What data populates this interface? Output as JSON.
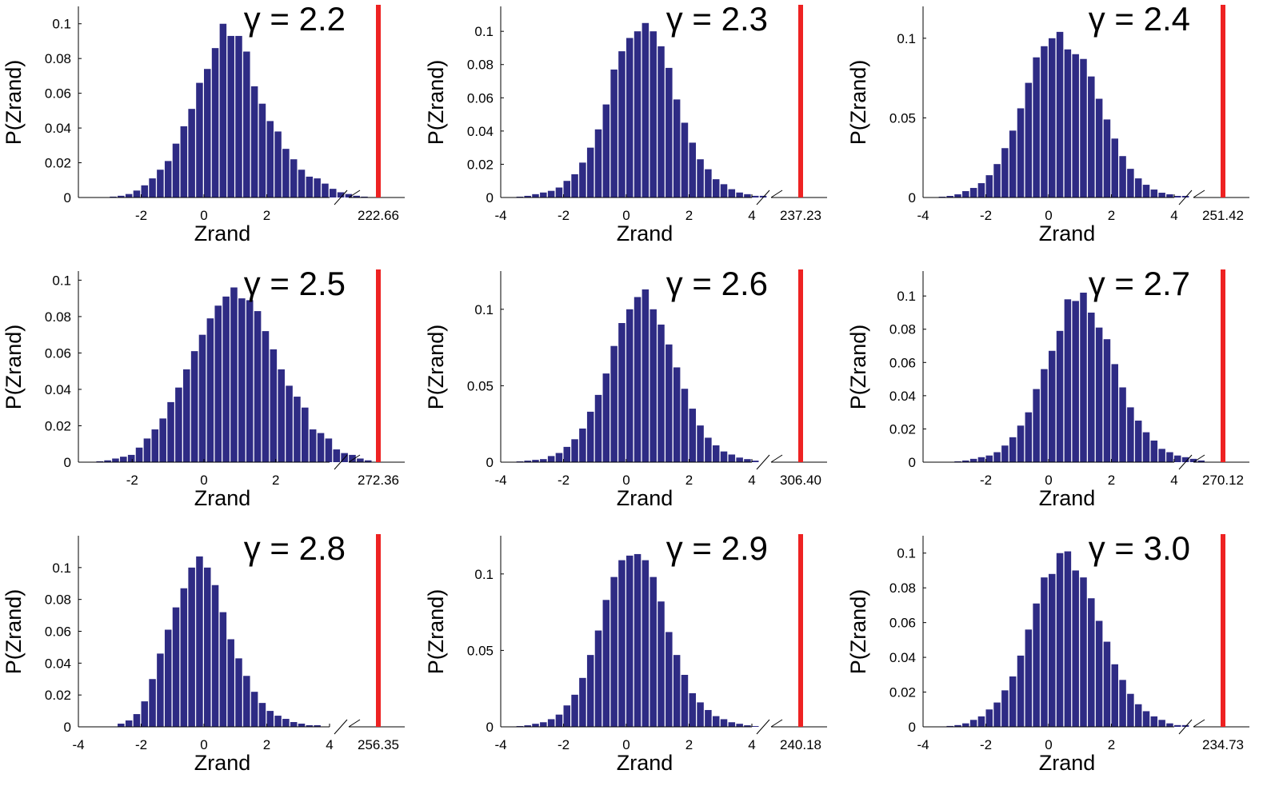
{
  "colors": {
    "bar": "#2e2b84",
    "observed": "#ee2222",
    "axis": "#000000"
  },
  "chart_data": [
    {
      "type": "bar",
      "title": "γ = 2.2",
      "xlabel": "Zrand",
      "ylabel": "P(Zrand)",
      "xlim": [
        -4,
        4
      ],
      "ylim": [
        0,
        0.11
      ],
      "xticks": [
        "-2",
        "0",
        "2"
      ],
      "yticks": [
        "0",
        "0.02",
        "0.04",
        "0.06",
        "0.08",
        "0.1"
      ],
      "bin_start": -3.0,
      "bin_width": 0.25,
      "values": [
        0.0005,
        0.001,
        0.002,
        0.004,
        0.007,
        0.011,
        0.016,
        0.021,
        0.031,
        0.041,
        0.051,
        0.066,
        0.074,
        0.086,
        0.1,
        0.093,
        0.093,
        0.084,
        0.064,
        0.054,
        0.044,
        0.038,
        0.028,
        0.022,
        0.016,
        0.012,
        0.011,
        0.008,
        0.005,
        0.003,
        0.002,
        0.001,
        0.0005
      ],
      "observed_label": "222.66"
    },
    {
      "type": "bar",
      "title": "γ = 2.3",
      "xlabel": "Zrand",
      "ylabel": "P(Zrand)",
      "xlim": [
        -4,
        4
      ],
      "ylim": [
        0,
        0.115
      ],
      "xticks": [
        "-4",
        "-2",
        "0",
        "2",
        "4"
      ],
      "yticks": [
        "0",
        "0.02",
        "0.04",
        "0.06",
        "0.08",
        "0.1"
      ],
      "bin_start": -3.5,
      "bin_width": 0.25,
      "values": [
        0.0005,
        0.001,
        0.002,
        0.003,
        0.004,
        0.006,
        0.01,
        0.014,
        0.021,
        0.03,
        0.041,
        0.056,
        0.077,
        0.088,
        0.096,
        0.1,
        0.105,
        0.1,
        0.091,
        0.078,
        0.059,
        0.045,
        0.033,
        0.023,
        0.017,
        0.011,
        0.008,
        0.005,
        0.003,
        0.002,
        0.001,
        0.001
      ],
      "observed_label": "237.23"
    },
    {
      "type": "bar",
      "title": "γ = 2.4",
      "xlabel": "Zrand",
      "ylabel": "P(Zrand)",
      "xlim": [
        -4,
        4
      ],
      "ylim": [
        0,
        0.12
      ],
      "xticks": [
        "-4",
        "-2",
        "0",
        "2",
        "4"
      ],
      "yticks": [
        "0",
        "0.05",
        "0.1"
      ],
      "bin_start": -3.5,
      "bin_width": 0.25,
      "values": [
        0.0005,
        0.001,
        0.002,
        0.004,
        0.006,
        0.009,
        0.014,
        0.021,
        0.031,
        0.042,
        0.056,
        0.072,
        0.088,
        0.095,
        0.1,
        0.104,
        0.093,
        0.09,
        0.087,
        0.076,
        0.062,
        0.049,
        0.037,
        0.026,
        0.018,
        0.012,
        0.008,
        0.005,
        0.003,
        0.002,
        0.001,
        0.001
      ],
      "observed_label": "251.42"
    },
    {
      "type": "bar",
      "title": "γ = 2.5",
      "xlabel": "Zrand",
      "ylabel": "P(Zrand)",
      "xlim": [
        -3.5,
        3.5
      ],
      "ylim": [
        0,
        0.105
      ],
      "xticks": [
        "-2",
        "0",
        "2"
      ],
      "yticks": [
        "0",
        "0.02",
        "0.04",
        "0.06",
        "0.08",
        "0.1"
      ],
      "bin_start": -3.0,
      "bin_width": 0.22,
      "values": [
        0.0005,
        0.001,
        0.002,
        0.003,
        0.004,
        0.008,
        0.013,
        0.018,
        0.024,
        0.033,
        0.041,
        0.051,
        0.061,
        0.07,
        0.079,
        0.086,
        0.091,
        0.096,
        0.09,
        0.089,
        0.083,
        0.072,
        0.062,
        0.051,
        0.042,
        0.036,
        0.03,
        0.018,
        0.016,
        0.013,
        0.007,
        0.005,
        0.004,
        0.002,
        0.001
      ],
      "observed_label": "272.36"
    },
    {
      "type": "bar",
      "title": "γ = 2.6",
      "xlabel": "Zrand",
      "ylabel": "P(Zrand)",
      "xlim": [
        -4,
        4
      ],
      "ylim": [
        0,
        0.125
      ],
      "xticks": [
        "-4",
        "-2",
        "0",
        "2",
        "4"
      ],
      "yticks": [
        "0",
        "0.05",
        "0.1"
      ],
      "bin_start": -3.5,
      "bin_width": 0.25,
      "values": [
        0.0005,
        0.001,
        0.0015,
        0.002,
        0.004,
        0.006,
        0.01,
        0.015,
        0.022,
        0.033,
        0.044,
        0.058,
        0.076,
        0.091,
        0.1,
        0.108,
        0.113,
        0.1,
        0.09,
        0.077,
        0.062,
        0.048,
        0.035,
        0.024,
        0.016,
        0.011,
        0.007,
        0.005,
        0.003,
        0.002,
        0.001
      ],
      "observed_label": "306.40"
    },
    {
      "type": "bar",
      "title": "γ = 2.7",
      "xlabel": "Zrand",
      "ylabel": "P(Zrand)",
      "xlim": [
        -4,
        4
      ],
      "ylim": [
        0,
        0.115
      ],
      "xticks": [
        "-2",
        "0",
        "2",
        "4"
      ],
      "yticks": [
        "0",
        "0.02",
        "0.04",
        "0.06",
        "0.08",
        "0.1"
      ],
      "bin_start": -3.0,
      "bin_width": 0.25,
      "values": [
        0.0005,
        0.001,
        0.002,
        0.003,
        0.004,
        0.006,
        0.01,
        0.015,
        0.022,
        0.03,
        0.044,
        0.056,
        0.067,
        0.079,
        0.098,
        0.097,
        0.102,
        0.09,
        0.081,
        0.074,
        0.059,
        0.045,
        0.033,
        0.025,
        0.018,
        0.013,
        0.008,
        0.006,
        0.004,
        0.003,
        0.002,
        0.001
      ],
      "observed_label": "270.12"
    },
    {
      "type": "bar",
      "title": "γ = 2.8",
      "xlabel": "Zrand",
      "ylabel": "P(Zrand)",
      "xlim": [
        -4,
        4
      ],
      "ylim": [
        0,
        0.12
      ],
      "xticks": [
        "-4",
        "-2",
        "0",
        "2",
        "4"
      ],
      "yticks": [
        "0",
        "0.02",
        "0.04",
        "0.06",
        "0.08",
        "0.1"
      ],
      "bin_start": -4.0,
      "bin_width": 0.25,
      "values": [
        0,
        0,
        0,
        0,
        0,
        0.002,
        0.004,
        0.008,
        0.016,
        0.03,
        0.046,
        0.061,
        0.075,
        0.087,
        0.1,
        0.107,
        0.1,
        0.089,
        0.072,
        0.055,
        0.043,
        0.032,
        0.022,
        0.015,
        0.01,
        0.007,
        0.005,
        0.003,
        0.002,
        0.001,
        0.001
      ],
      "observed_label": "256.35"
    },
    {
      "type": "bar",
      "title": "γ = 2.9",
      "xlabel": "Zrand",
      "ylabel": "P(Zrand)",
      "xlim": [
        -4,
        4
      ],
      "ylim": [
        0,
        0.125
      ],
      "xticks": [
        "-4",
        "-2",
        "0",
        "2",
        "4"
      ],
      "yticks": [
        "0",
        "0.05",
        "0.1"
      ],
      "bin_start": -3.5,
      "bin_width": 0.25,
      "values": [
        0.0005,
        0.001,
        0.002,
        0.003,
        0.005,
        0.008,
        0.014,
        0.021,
        0.032,
        0.047,
        0.063,
        0.083,
        0.098,
        0.109,
        0.112,
        0.113,
        0.109,
        0.098,
        0.082,
        0.062,
        0.047,
        0.034,
        0.022,
        0.016,
        0.011,
        0.007,
        0.005,
        0.003,
        0.002,
        0.001,
        0.0005
      ],
      "observed_label": "240.18"
    },
    {
      "type": "bar",
      "title": "γ = 3.0",
      "xlabel": "Zrand",
      "ylabel": "P(Zrand)",
      "xlim": [
        -4,
        4
      ],
      "ylim": [
        0,
        0.11
      ],
      "xticks": [
        "-4",
        "-2",
        "0",
        "2"
      ],
      "yticks": [
        "0",
        "0.02",
        "0.04",
        "0.06",
        "0.08",
        "0.1"
      ],
      "bin_start": -3.5,
      "bin_width": 0.25,
      "values": [
        0,
        0.0005,
        0.001,
        0.002,
        0.004,
        0.006,
        0.01,
        0.014,
        0.021,
        0.029,
        0.041,
        0.056,
        0.071,
        0.086,
        0.088,
        0.1,
        0.101,
        0.09,
        0.086,
        0.074,
        0.061,
        0.049,
        0.036,
        0.027,
        0.019,
        0.013,
        0.009,
        0.006,
        0.004,
        0.002,
        0.001,
        0.001
      ],
      "observed_label": "234.73"
    }
  ]
}
